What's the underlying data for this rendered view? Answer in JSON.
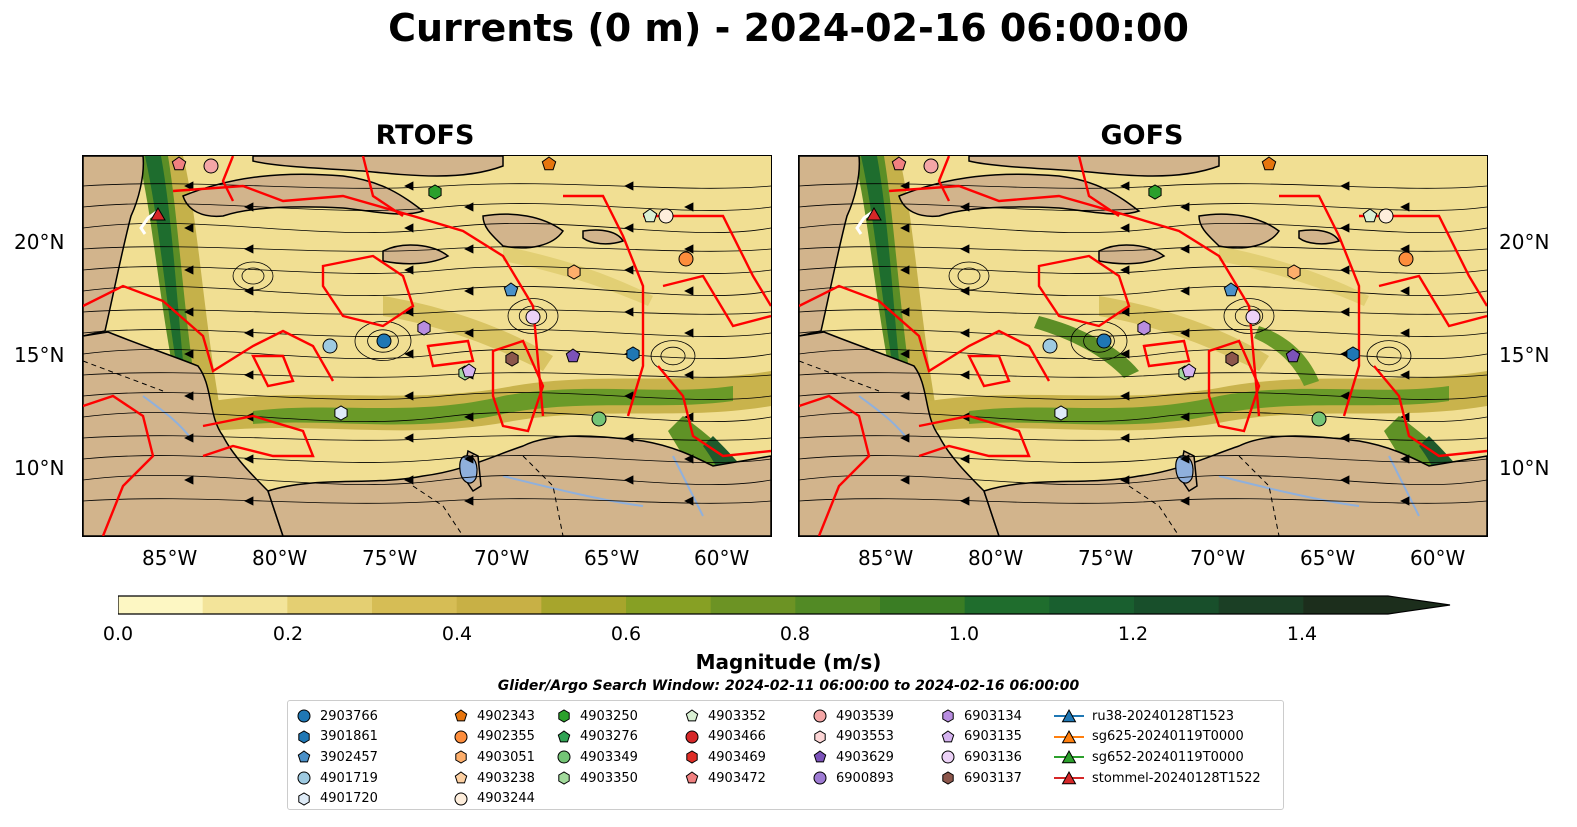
{
  "title": "Currents (0 m) - 2024-02-16 06:00:00",
  "panels": [
    {
      "title": "RTOFS"
    },
    {
      "title": "GOFS"
    }
  ],
  "axes": {
    "lon_labels": [
      "85°W",
      "80°W",
      "75°W",
      "70°W",
      "65°W",
      "60°W"
    ],
    "lat_labels": [
      "20°N",
      "15°N",
      "10°N"
    ]
  },
  "colorbar": {
    "label": "Magnitude (m/s)",
    "ticks": [
      "0.0",
      "0.2",
      "0.4",
      "0.6",
      "0.8",
      "1.0",
      "1.2",
      "1.4"
    ],
    "range": [
      0.0,
      1.5
    ],
    "extend": "max"
  },
  "search_window": "Glider/Argo Search Window: 2024-02-11 06:00:00 to 2024-02-16 06:00:00",
  "legend": {
    "columns": [
      [
        {
          "label": "2903766",
          "marker": "circle",
          "color": "#1f77b4"
        },
        {
          "label": "3901861",
          "marker": "hexagon",
          "color": "#1f77b4"
        },
        {
          "label": "3902457",
          "marker": "pentagon",
          "color": "#4a90c8"
        },
        {
          "label": "4901719",
          "marker": "circle",
          "color": "#9ecae1"
        },
        {
          "label": "4901720",
          "marker": "hexagon",
          "color": "#deebf7"
        }
      ],
      [
        {
          "label": "4902343",
          "marker": "pentagon",
          "color": "#e6750e"
        },
        {
          "label": "4902355",
          "marker": "circle",
          "color": "#fd8d3c"
        },
        {
          "label": "4903051",
          "marker": "hexagon",
          "color": "#fdae6b"
        },
        {
          "label": "4903238",
          "marker": "pentagon",
          "color": "#fdd0a2"
        },
        {
          "label": "4903244",
          "marker": "circle",
          "color": "#feeedc"
        }
      ],
      [
        {
          "label": "4903250",
          "marker": "hexagon",
          "color": "#2ca02c"
        },
        {
          "label": "4903276",
          "marker": "pentagon",
          "color": "#31a354"
        },
        {
          "label": "4903349",
          "marker": "circle",
          "color": "#74c476"
        },
        {
          "label": "4903350",
          "marker": "hexagon",
          "color": "#a1d99b"
        }
      ],
      [
        {
          "label": "4903352",
          "marker": "pentagon",
          "color": "#d9f0d3"
        },
        {
          "label": "4903466",
          "marker": "circle",
          "color": "#d62728"
        },
        {
          "label": "4903469",
          "marker": "hexagon",
          "color": "#de2d26"
        },
        {
          "label": "4903472",
          "marker": "pentagon",
          "color": "#f08080"
        }
      ],
      [
        {
          "label": "4903539",
          "marker": "circle",
          "color": "#f4a6a6"
        },
        {
          "label": "4903553",
          "marker": "hexagon",
          "color": "#fcd5d5"
        },
        {
          "label": "4903629",
          "marker": "pentagon",
          "color": "#7b52b9"
        },
        {
          "label": "6900893",
          "marker": "circle",
          "color": "#9e7bd3"
        }
      ],
      [
        {
          "label": "6903134",
          "marker": "hexagon",
          "color": "#b88de0"
        },
        {
          "label": "6903135",
          "marker": "pentagon",
          "color": "#d5b3f0"
        },
        {
          "label": "6903136",
          "marker": "circle",
          "color": "#ecd2f7"
        },
        {
          "label": "6903137",
          "marker": "hexagon",
          "color": "#8c564b"
        }
      ],
      [
        {
          "label": "ru38-20240128T1523",
          "marker": "triangle-line",
          "color": "#1f77b4"
        },
        {
          "label": "sg625-20240119T0000",
          "marker": "triangle-line",
          "color": "#ff7f0e"
        },
        {
          "label": "sg652-20240119T0000",
          "marker": "triangle-line",
          "color": "#2ca02c"
        },
        {
          "label": "stommel-20240128T1522",
          "marker": "triangle-line",
          "color": "#d62728"
        }
      ]
    ]
  },
  "colors": {
    "land": "#d2b48c",
    "eez_lines": "#ff0000",
    "streamlines": "#000000",
    "water_bodies": "#8fb0dc"
  }
}
